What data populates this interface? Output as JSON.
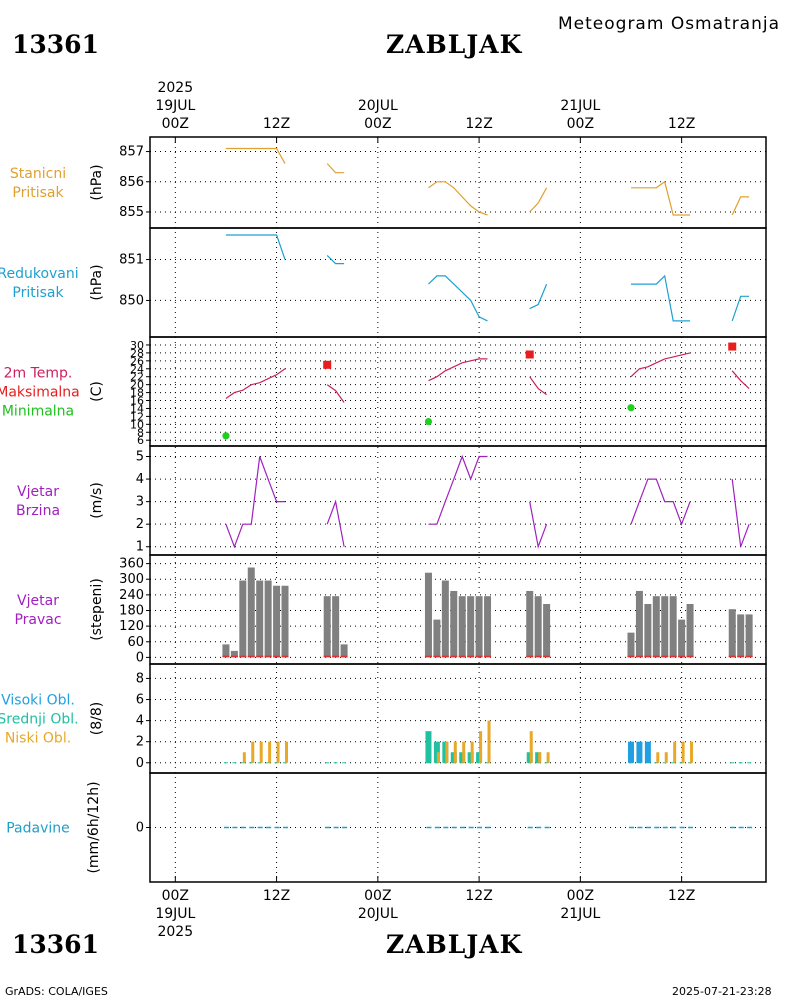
{
  "header": {
    "station_id": "13361",
    "station_name": "ZABLJAK",
    "title": "Meteogram Osmatranja",
    "year": "2025"
  },
  "footer": {
    "station_id": "13361",
    "station_name": "ZABLJAK",
    "credit": "GrADS: COLA/IGES",
    "timestamp": "2025-07-21-23:28"
  },
  "time_axis": {
    "ticks": [
      {
        "h": 0,
        "label": "00Z",
        "date": "19JUL",
        "year": "2025"
      },
      {
        "h": 12,
        "label": "12Z"
      },
      {
        "h": 24,
        "label": "00Z",
        "date": "20JUL"
      },
      {
        "h": 36,
        "label": "12Z"
      },
      {
        "h": 48,
        "label": "00Z",
        "date": "21JUL"
      },
      {
        "h": 60,
        "label": "12Z"
      }
    ],
    "range": [
      -3,
      70
    ]
  },
  "colors": {
    "station_pressure": "#e0a030",
    "reduced_pressure": "#1fa0d0",
    "max_temp": "#e81e1e",
    "min_temp": "#20d020",
    "temp_line": "#cc2060",
    "wind": "#a020c0",
    "wind_bar": "#808080",
    "wind_red": "#e03030",
    "high_cloud": "#20a0e0",
    "mid_cloud": "#20c0a0",
    "low_cloud": "#e8a828",
    "precip": "#20a0c8"
  },
  "panels": [
    {
      "id": "stanicni",
      "labels": [
        "Stanicni",
        "Pritisak"
      ],
      "label_colors": [
        "#e0a030",
        "#e0a030"
      ],
      "unit": "(hPa)"
    },
    {
      "id": "redukovani",
      "labels": [
        "Redukovani",
        "Pritisak"
      ],
      "label_colors": [
        "#1fa0d0",
        "#1fa0d0"
      ],
      "unit": "(hPa)"
    },
    {
      "id": "temp",
      "labels": [
        "2m Temp.",
        "Maksimalna",
        "Minimalna"
      ],
      "label_colors": [
        "#cc2060",
        "#e81e1e",
        "#20c020"
      ],
      "unit": "(C)"
    },
    {
      "id": "brzina",
      "labels": [
        "Vjetar",
        "Brzina"
      ],
      "label_colors": [
        "#a020c0",
        "#a020c0"
      ],
      "unit": "(m/s)"
    },
    {
      "id": "pravac",
      "labels": [
        "Vjetar",
        "Pravac"
      ],
      "label_colors": [
        "#a020c0",
        "#a020c0"
      ],
      "unit": "(stepeni)"
    },
    {
      "id": "oblaci",
      "labels": [
        "Visoki Obl.",
        "Srednji Obl.",
        "Niski Obl."
      ],
      "label_colors": [
        "#20a0e0",
        "#20c0a0",
        "#e8a828"
      ],
      "unit": "(8/8)"
    },
    {
      "id": "padavine",
      "labels": [
        "Padavine"
      ],
      "label_colors": [
        "#20a0c8"
      ],
      "unit": "(mm/6h/12h)"
    }
  ],
  "chart_data": [
    {
      "type": "line",
      "id": "stanicni",
      "title": "Stanicni Pritisak",
      "ylabel": "(hPa)",
      "ylim": [
        854.8,
        857.25
      ],
      "yticks": [
        855,
        856,
        857
      ],
      "series": [
        {
          "name": "Stanicni pritisak",
          "segments": [
            [
              [
                6,
                857.1
              ],
              [
                7,
                857.1
              ],
              [
                8,
                857.1
              ],
              [
                9,
                857.1
              ],
              [
                10,
                857.1
              ],
              [
                11,
                857.1
              ],
              [
                12,
                857.1
              ],
              [
                13,
                856.6
              ]
            ],
            [
              [
                18,
                856.6
              ],
              [
                19,
                856.3
              ],
              [
                20,
                856.3
              ]
            ],
            [
              [
                30,
                855.8
              ],
              [
                31,
                856.0
              ],
              [
                32,
                856.0
              ],
              [
                33,
                855.8
              ],
              [
                34,
                855.5
              ],
              [
                35,
                855.2
              ],
              [
                36,
                855.0
              ],
              [
                37,
                854.9
              ]
            ],
            [
              [
                42,
                855.0
              ],
              [
                43,
                855.3
              ],
              [
                44,
                855.8
              ]
            ],
            [
              [
                54,
                855.8
              ],
              [
                55,
                855.8
              ],
              [
                56,
                855.8
              ],
              [
                57,
                855.8
              ],
              [
                58,
                856.0
              ],
              [
                59,
                854.9
              ],
              [
                60,
                854.9
              ],
              [
                61,
                854.9
              ]
            ],
            [
              [
                66,
                854.9
              ],
              [
                67,
                855.5
              ],
              [
                68,
                855.5
              ]
            ]
          ]
        }
      ]
    },
    {
      "type": "line",
      "id": "redukovani",
      "title": "Redukovani Pritisak",
      "ylabel": "(hPa)",
      "ylim": [
        849.35,
        851.6
      ],
      "yticks": [
        850,
        851
      ],
      "series": [
        {
          "name": "Redukovani pritisak",
          "segments": [
            [
              [
                6,
                851.6
              ],
              [
                7,
                851.6
              ],
              [
                8,
                851.6
              ],
              [
                9,
                851.6
              ],
              [
                10,
                851.6
              ],
              [
                11,
                851.6
              ],
              [
                12,
                851.6
              ],
              [
                13,
                851.0
              ]
            ],
            [
              [
                18,
                851.1
              ],
              [
                19,
                850.9
              ],
              [
                20,
                850.9
              ]
            ],
            [
              [
                30,
                850.4
              ],
              [
                31,
                850.6
              ],
              [
                32,
                850.6
              ],
              [
                33,
                850.4
              ],
              [
                34,
                850.2
              ],
              [
                35,
                850.0
              ],
              [
                36,
                849.6
              ],
              [
                37,
                849.5
              ]
            ],
            [
              [
                42,
                849.8
              ],
              [
                43,
                849.9
              ],
              [
                44,
                850.4
              ]
            ],
            [
              [
                54,
                850.4
              ],
              [
                55,
                850.4
              ],
              [
                56,
                850.4
              ],
              [
                57,
                850.4
              ],
              [
                58,
                850.6
              ],
              [
                59,
                849.5
              ],
              [
                60,
                849.5
              ],
              [
                61,
                849.5
              ]
            ],
            [
              [
                66,
                849.5
              ],
              [
                67,
                850.1
              ],
              [
                68,
                850.1
              ]
            ]
          ]
        }
      ]
    },
    {
      "type": "line",
      "id": "temp",
      "title": "2m Temp.",
      "ylabel": "(C)",
      "ylim": [
        5.8,
        31
      ],
      "yticks": [
        6,
        8,
        10,
        12,
        14,
        16,
        18,
        20,
        22,
        24,
        26,
        28,
        30
      ],
      "series": [
        {
          "name": "2m Temp.",
          "segments": [
            [
              [
                6,
                16.5
              ],
              [
                7,
                18
              ],
              [
                8,
                18.6
              ],
              [
                9,
                20
              ],
              [
                10,
                20.5
              ],
              [
                11,
                21.5
              ],
              [
                12,
                22.5
              ],
              [
                13,
                24
              ]
            ],
            [
              [
                18,
                20
              ],
              [
                19,
                18.5
              ],
              [
                20,
                15.5
              ]
            ],
            [
              [
                30,
                21
              ],
              [
                31,
                22
              ],
              [
                32,
                23.5
              ],
              [
                33,
                24.5
              ],
              [
                34,
                25.5
              ],
              [
                35,
                26
              ],
              [
                36,
                26.5
              ],
              [
                37,
                26.5
              ]
            ],
            [
              [
                42,
                22
              ],
              [
                43,
                19
              ],
              [
                44,
                17.5
              ]
            ],
            [
              [
                54,
                22
              ],
              [
                55,
                24
              ],
              [
                56,
                24.5
              ],
              [
                57,
                25.5
              ],
              [
                58,
                26.5
              ],
              [
                59,
                27
              ],
              [
                60,
                27.5
              ],
              [
                61,
                28
              ]
            ],
            [
              [
                66,
                23.5
              ],
              [
                67,
                21
              ],
              [
                68,
                19
              ]
            ]
          ]
        }
      ],
      "points": [
        {
          "name": "Maksimalna",
          "x": 18,
          "y": 25,
          "marker": "square"
        },
        {
          "name": "Maksimalna",
          "x": 42,
          "y": 27.6,
          "marker": "square"
        },
        {
          "name": "Maksimalna",
          "x": 66,
          "y": 29.6,
          "marker": "square"
        },
        {
          "name": "Minimalna",
          "x": 6,
          "y": 7.1,
          "marker": "circle"
        },
        {
          "name": "Minimalna",
          "x": 30,
          "y": 10.7,
          "marker": "circle"
        },
        {
          "name": "Minimalna",
          "x": 54,
          "y": 14.2,
          "marker": "circle"
        }
      ]
    },
    {
      "type": "line",
      "id": "brzina",
      "title": "Vjetar Brzina",
      "ylabel": "(m/s)",
      "ylim": [
        0.9,
        5.2
      ],
      "yticks": [
        1,
        2,
        3,
        4,
        5
      ],
      "series": [
        {
          "name": "Vjetar brzina",
          "segments": [
            [
              [
                6,
                2
              ],
              [
                7,
                1
              ],
              [
                8,
                2
              ],
              [
                9,
                2
              ],
              [
                10,
                5
              ],
              [
                11,
                4
              ],
              [
                12,
                3
              ],
              [
                13,
                3
              ]
            ],
            [
              [
                18,
                2
              ],
              [
                19,
                3
              ],
              [
                20,
                1
              ]
            ],
            [
              [
                30,
                2
              ],
              [
                31,
                2
              ],
              [
                32,
                3
              ],
              [
                33,
                4
              ],
              [
                34,
                5
              ],
              [
                35,
                4
              ],
              [
                36,
                5
              ],
              [
                37,
                5
              ]
            ],
            [
              [
                42,
                3
              ],
              [
                43,
                1
              ],
              [
                44,
                2
              ]
            ],
            [
              [
                54,
                2
              ],
              [
                55,
                3
              ],
              [
                56,
                4
              ],
              [
                57,
                4
              ],
              [
                58,
                3
              ],
              [
                59,
                3
              ],
              [
                60,
                2
              ],
              [
                61,
                3
              ]
            ],
            [
              [
                66,
                4
              ],
              [
                67,
                1
              ],
              [
                68,
                2
              ]
            ]
          ]
        }
      ]
    },
    {
      "type": "bar",
      "id": "pravac",
      "title": "Vjetar Pravac",
      "ylabel": "(stepeni)",
      "ylim": [
        -10,
        370
      ],
      "yticks": [
        0,
        60,
        120,
        180,
        240,
        300,
        360
      ],
      "x": [
        6,
        7,
        8,
        9,
        10,
        11,
        12,
        13,
        18,
        19,
        20,
        30,
        31,
        32,
        33,
        34,
        35,
        36,
        37,
        42,
        43,
        44,
        54,
        55,
        56,
        57,
        58,
        59,
        60,
        61,
        66,
        67,
        68
      ],
      "values": [
        50,
        25,
        295,
        345,
        295,
        295,
        275,
        275,
        235,
        235,
        50,
        325,
        145,
        295,
        255,
        235,
        235,
        235,
        235,
        255,
        235,
        205,
        95,
        255,
        205,
        235,
        235,
        235,
        145,
        205,
        185,
        165,
        165
      ]
    },
    {
      "type": "bar",
      "id": "oblaci",
      "title": "Visoki / Srednji / Niski Obl.",
      "ylabel": "(8/8)",
      "ylim": [
        -0.4,
        8.8
      ],
      "yticks": [
        0,
        2,
        4,
        6,
        8
      ],
      "x": [
        6,
        7,
        8,
        9,
        10,
        11,
        12,
        13,
        18,
        19,
        20,
        30,
        31,
        32,
        33,
        34,
        35,
        36,
        37,
        42,
        43,
        44,
        54,
        55,
        56,
        57,
        58,
        59,
        60,
        61,
        66,
        67,
        68
      ],
      "series": [
        {
          "name": "Visoki Obl.",
          "values": [
            0,
            0,
            0,
            0,
            0,
            0,
            0,
            0,
            0,
            0,
            0,
            0,
            0,
            0,
            0,
            0,
            0,
            0,
            0,
            0,
            0,
            0,
            2,
            2,
            2,
            0,
            0,
            0,
            0,
            0,
            0,
            0,
            0
          ]
        },
        {
          "name": "Srednji Obl.",
          "values": [
            0,
            0,
            0,
            0,
            0,
            0,
            0,
            0,
            0,
            0,
            0,
            3,
            2,
            2,
            1,
            1,
            1,
            1,
            0,
            1,
            1,
            0,
            0,
            0,
            0,
            0,
            0,
            0,
            0,
            0,
            0,
            0,
            0
          ]
        },
        {
          "name": "Niski Obl.",
          "values": [
            0,
            0,
            1,
            2,
            2,
            2,
            2,
            2,
            0,
            0,
            0,
            0,
            1,
            2,
            2,
            2,
            2,
            3,
            4,
            3,
            1,
            1,
            0,
            0,
            0,
            1,
            1,
            2,
            2,
            2,
            0,
            0,
            0
          ]
        }
      ]
    },
    {
      "type": "bar",
      "id": "padavine",
      "title": "Padavine",
      "ylabel": "(mm/6h/12h)",
      "ylim": [
        -0.3,
        0.3
      ],
      "yticks": [
        0
      ],
      "x": [
        6,
        7,
        8,
        9,
        10,
        11,
        12,
        13,
        18,
        19,
        20,
        30,
        31,
        32,
        33,
        34,
        35,
        36,
        37,
        42,
        43,
        44,
        54,
        55,
        56,
        57,
        58,
        59,
        60,
        61,
        66,
        67,
        68
      ],
      "values": [
        0,
        0,
        0,
        0,
        0,
        0,
        0,
        0,
        0,
        0,
        0,
        0,
        0,
        0,
        0,
        0,
        0,
        0,
        0,
        0,
        0,
        0,
        0,
        0,
        0,
        0,
        0,
        0,
        0,
        0,
        0,
        0,
        0
      ]
    }
  ]
}
